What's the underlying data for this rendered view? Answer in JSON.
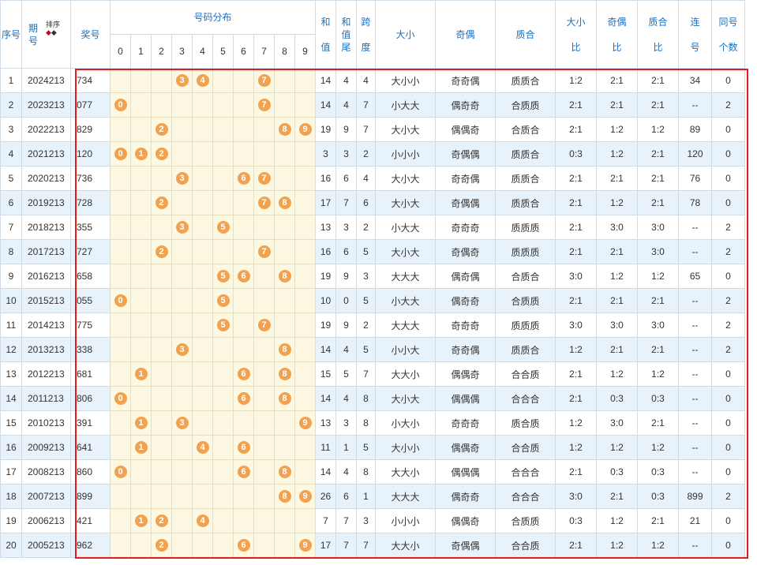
{
  "headers": {
    "seq": "序号",
    "period_top": "期",
    "period_bottom": "号",
    "sort": "排序",
    "draw": "奖号",
    "distribution": "号码分布",
    "digits": [
      "0",
      "1",
      "2",
      "3",
      "4",
      "5",
      "6",
      "7",
      "8",
      "9"
    ],
    "sum": [
      "和",
      "值"
    ],
    "sum_tail": [
      "和",
      "值",
      "尾"
    ],
    "span": [
      "跨",
      "度"
    ],
    "size": "大小",
    "parity": "奇偶",
    "prime": "质合",
    "size_ratio": [
      "大小",
      "比"
    ],
    "parity_ratio": [
      "奇偶",
      "比"
    ],
    "prime_ratio": [
      "质合",
      "比"
    ],
    "consecutive": [
      "连",
      "号"
    ],
    "same_count": [
      "同号",
      "个数"
    ]
  },
  "rows": [
    {
      "seq": "1",
      "period": "2024213",
      "draw": "734",
      "digits": [
        3,
        4,
        7
      ],
      "sum": "14",
      "tail": "4",
      "span": "4",
      "size": "大小小",
      "parity": "奇奇偶",
      "prime": "质质合",
      "sr": "1:2",
      "pr": "2:1",
      "qr": "2:1",
      "lian": "34",
      "same": "0"
    },
    {
      "seq": "2",
      "period": "2023213",
      "draw": "077",
      "digits": [
        0,
        7
      ],
      "sum": "14",
      "tail": "4",
      "span": "7",
      "size": "小大大",
      "parity": "偶奇奇",
      "prime": "合质质",
      "sr": "2:1",
      "pr": "2:1",
      "qr": "2:1",
      "lian": "--",
      "same": "2"
    },
    {
      "seq": "3",
      "period": "2022213",
      "draw": "829",
      "digits": [
        2,
        8,
        9
      ],
      "sum": "19",
      "tail": "9",
      "span": "7",
      "size": "大小大",
      "parity": "偶偶奇",
      "prime": "合质合",
      "sr": "2:1",
      "pr": "1:2",
      "qr": "1:2",
      "lian": "89",
      "same": "0"
    },
    {
      "seq": "4",
      "period": "2021213",
      "draw": "120",
      "digits": [
        0,
        1,
        2
      ],
      "sum": "3",
      "tail": "3",
      "span": "2",
      "size": "小小小",
      "parity": "奇偶偶",
      "prime": "质质合",
      "sr": "0:3",
      "pr": "1:2",
      "qr": "2:1",
      "lian": "120",
      "same": "0"
    },
    {
      "seq": "5",
      "period": "2020213",
      "draw": "736",
      "digits": [
        3,
        6,
        7
      ],
      "sum": "16",
      "tail": "6",
      "span": "4",
      "size": "大小大",
      "parity": "奇奇偶",
      "prime": "质质合",
      "sr": "2:1",
      "pr": "2:1",
      "qr": "2:1",
      "lian": "76",
      "same": "0"
    },
    {
      "seq": "6",
      "period": "2019213",
      "draw": "728",
      "digits": [
        2,
        7,
        8
      ],
      "sum": "17",
      "tail": "7",
      "span": "6",
      "size": "大小大",
      "parity": "奇偶偶",
      "prime": "质质合",
      "sr": "2:1",
      "pr": "1:2",
      "qr": "2:1",
      "lian": "78",
      "same": "0"
    },
    {
      "seq": "7",
      "period": "2018213",
      "draw": "355",
      "digits": [
        3,
        5
      ],
      "sum": "13",
      "tail": "3",
      "span": "2",
      "size": "小大大",
      "parity": "奇奇奇",
      "prime": "质质质",
      "sr": "2:1",
      "pr": "3:0",
      "qr": "3:0",
      "lian": "--",
      "same": "2"
    },
    {
      "seq": "8",
      "period": "2017213",
      "draw": "727",
      "digits": [
        2,
        7
      ],
      "sum": "16",
      "tail": "6",
      "span": "5",
      "size": "大小大",
      "parity": "奇偶奇",
      "prime": "质质质",
      "sr": "2:1",
      "pr": "2:1",
      "qr": "3:0",
      "lian": "--",
      "same": "2"
    },
    {
      "seq": "9",
      "period": "2016213",
      "draw": "658",
      "digits": [
        5,
        6,
        8
      ],
      "sum": "19",
      "tail": "9",
      "span": "3",
      "size": "大大大",
      "parity": "偶奇偶",
      "prime": "合质合",
      "sr": "3:0",
      "pr": "1:2",
      "qr": "1:2",
      "lian": "65",
      "same": "0"
    },
    {
      "seq": "10",
      "period": "2015213",
      "draw": "055",
      "digits": [
        0,
        5
      ],
      "sum": "10",
      "tail": "0",
      "span": "5",
      "size": "小大大",
      "parity": "偶奇奇",
      "prime": "合质质",
      "sr": "2:1",
      "pr": "2:1",
      "qr": "2:1",
      "lian": "--",
      "same": "2"
    },
    {
      "seq": "11",
      "period": "2014213",
      "draw": "775",
      "digits": [
        5,
        7
      ],
      "sum": "19",
      "tail": "9",
      "span": "2",
      "size": "大大大",
      "parity": "奇奇奇",
      "prime": "质质质",
      "sr": "3:0",
      "pr": "3:0",
      "qr": "3:0",
      "lian": "--",
      "same": "2"
    },
    {
      "seq": "12",
      "period": "2013213",
      "draw": "338",
      "digits": [
        3,
        8
      ],
      "sum": "14",
      "tail": "4",
      "span": "5",
      "size": "小小大",
      "parity": "奇奇偶",
      "prime": "质质合",
      "sr": "1:2",
      "pr": "2:1",
      "qr": "2:1",
      "lian": "--",
      "same": "2"
    },
    {
      "seq": "13",
      "period": "2012213",
      "draw": "681",
      "digits": [
        1,
        6,
        8
      ],
      "sum": "15",
      "tail": "5",
      "span": "7",
      "size": "大大小",
      "parity": "偶偶奇",
      "prime": "合合质",
      "sr": "2:1",
      "pr": "1:2",
      "qr": "1:2",
      "lian": "--",
      "same": "0"
    },
    {
      "seq": "14",
      "period": "2011213",
      "draw": "806",
      "digits": [
        0,
        6,
        8
      ],
      "sum": "14",
      "tail": "4",
      "span": "8",
      "size": "大小大",
      "parity": "偶偶偶",
      "prime": "合合合",
      "sr": "2:1",
      "pr": "0:3",
      "qr": "0:3",
      "lian": "--",
      "same": "0"
    },
    {
      "seq": "15",
      "period": "2010213",
      "draw": "391",
      "digits": [
        1,
        3,
        9
      ],
      "sum": "13",
      "tail": "3",
      "span": "8",
      "size": "小大小",
      "parity": "奇奇奇",
      "prime": "质合质",
      "sr": "1:2",
      "pr": "3:0",
      "qr": "2:1",
      "lian": "--",
      "same": "0"
    },
    {
      "seq": "16",
      "period": "2009213",
      "draw": "641",
      "digits": [
        1,
        4,
        6
      ],
      "sum": "11",
      "tail": "1",
      "span": "5",
      "size": "大小小",
      "parity": "偶偶奇",
      "prime": "合合质",
      "sr": "1:2",
      "pr": "1:2",
      "qr": "1:2",
      "lian": "--",
      "same": "0"
    },
    {
      "seq": "17",
      "period": "2008213",
      "draw": "860",
      "digits": [
        0,
        6,
        8
      ],
      "sum": "14",
      "tail": "4",
      "span": "8",
      "size": "大大小",
      "parity": "偶偶偶",
      "prime": "合合合",
      "sr": "2:1",
      "pr": "0:3",
      "qr": "0:3",
      "lian": "--",
      "same": "0"
    },
    {
      "seq": "18",
      "period": "2007213",
      "draw": "899",
      "digits": [
        8,
        9
      ],
      "sum": "26",
      "tail": "6",
      "span": "1",
      "size": "大大大",
      "parity": "偶奇奇",
      "prime": "合合合",
      "sr": "3:0",
      "pr": "2:1",
      "qr": "0:3",
      "lian": "899",
      "same": "2"
    },
    {
      "seq": "19",
      "period": "2006213",
      "draw": "421",
      "digits": [
        1,
        2,
        4
      ],
      "sum": "7",
      "tail": "7",
      "span": "3",
      "size": "小小小",
      "parity": "偶偶奇",
      "prime": "合质质",
      "sr": "0:3",
      "pr": "1:2",
      "qr": "2:1",
      "lian": "21",
      "same": "0"
    },
    {
      "seq": "20",
      "period": "2005213",
      "draw": "962",
      "digits": [
        2,
        6,
        9
      ],
      "sum": "17",
      "tail": "7",
      "span": "7",
      "size": "大大小",
      "parity": "奇偶偶",
      "prime": "合合质",
      "sr": "2:1",
      "pr": "1:2",
      "qr": "1:2",
      "lian": "--",
      "same": "0"
    }
  ],
  "colors": {
    "header_text": "#1a6fc1",
    "ball": "#f2a24e",
    "highlight_border": "#e31b1b",
    "zebra": "#e8f2fa",
    "distribution_bg": "#fdf8e1"
  }
}
